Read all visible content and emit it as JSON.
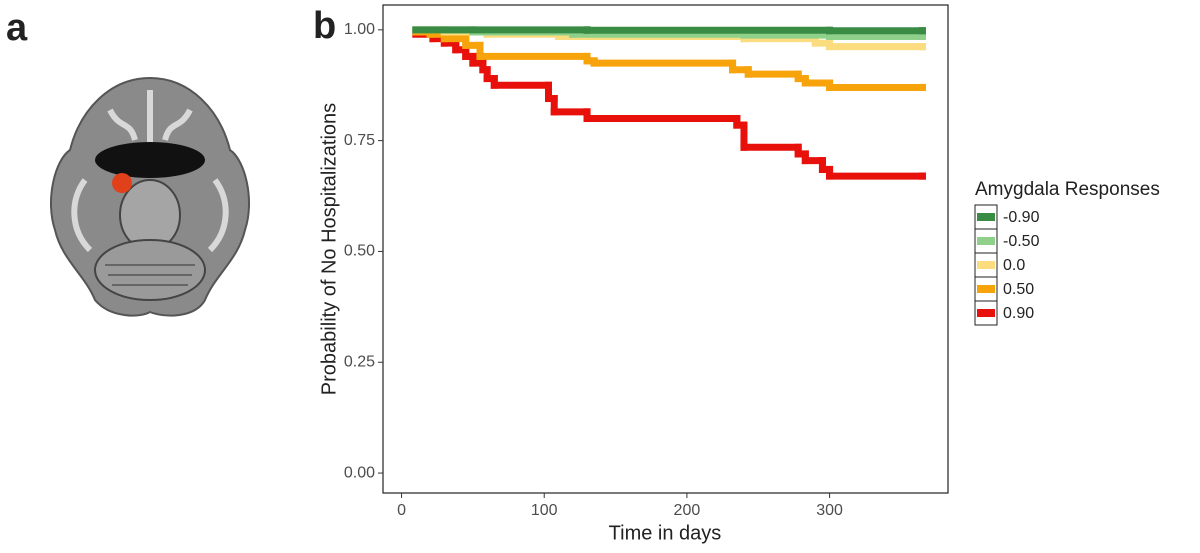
{
  "panel_labels": [
    "a",
    "b"
  ],
  "chart_data": {
    "type": "step",
    "y_label": "Probability of No Hospitalizations",
    "x_label": "Time in days",
    "xlim": [
      -13,
      383
    ],
    "ylim": [
      -0.045,
      1.056
    ],
    "xticks": [
      0,
      100,
      200,
      300
    ],
    "yticks": [
      {
        "value": 0,
        "label": "0.00"
      },
      {
        "value": 0.25,
        "label": "0.25"
      },
      {
        "value": 0.5,
        "label": "0.50"
      },
      {
        "value": 0.75,
        "label": "0.75"
      },
      {
        "value": 1,
        "label": "1.00"
      }
    ],
    "grid": false,
    "legend": {
      "title": "Amygdala Responses",
      "position": "right"
    },
    "series": [
      {
        "name": "-0.90",
        "color": "#3a8c45",
        "x": [
          10,
          130,
          300,
          365
        ],
        "values": [
          1.0,
          0.999,
          0.998,
          0.998
        ]
      },
      {
        "name": "-0.50",
        "color": "#8fd08a",
        "x": [
          10,
          50,
          120,
          240,
          300,
          365
        ],
        "values": [
          1.0,
          0.995,
          0.99,
          0.988,
          0.985,
          0.985
        ]
      },
      {
        "name": "0.0",
        "color": "#fbdc7e",
        "x": [
          10,
          30,
          60,
          110,
          240,
          290,
          300,
          365
        ],
        "values": [
          1.0,
          0.995,
          0.99,
          0.985,
          0.98,
          0.97,
          0.962,
          0.962
        ]
      },
      {
        "name": "0.50",
        "color": "#f7a30b",
        "x": [
          10,
          20,
          30,
          45,
          55,
          130,
          135,
          232,
          243,
          278,
          283,
          300,
          365
        ],
        "values": [
          0.995,
          0.99,
          0.98,
          0.965,
          0.94,
          0.93,
          0.925,
          0.91,
          0.9,
          0.89,
          0.88,
          0.87,
          0.87
        ]
      },
      {
        "name": "0.90",
        "color": "#e8100b",
        "x": [
          10,
          22,
          30,
          38,
          45,
          50,
          57,
          60,
          65,
          103,
          107,
          130,
          235,
          240,
          278,
          283,
          295,
          300,
          365
        ],
        "values": [
          0.99,
          0.98,
          0.97,
          0.955,
          0.94,
          0.925,
          0.91,
          0.89,
          0.875,
          0.845,
          0.815,
          0.8,
          0.785,
          0.735,
          0.72,
          0.705,
          0.685,
          0.67,
          0.67
        ]
      }
    ]
  }
}
